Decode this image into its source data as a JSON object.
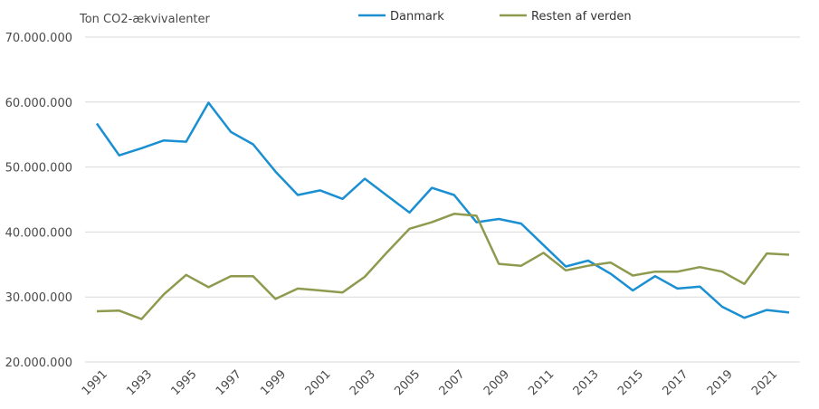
{
  "chart_data": {
    "type": "line",
    "ylabel": "Ton CO2-ækvivalenter",
    "x": [
      1991,
      1992,
      1993,
      1994,
      1995,
      1996,
      1997,
      1998,
      1999,
      2000,
      2001,
      2002,
      2003,
      2004,
      2005,
      2006,
      2007,
      2008,
      2009,
      2010,
      2011,
      2012,
      2013,
      2014,
      2015,
      2016,
      2017,
      2018,
      2019,
      2020,
      2021,
      2022
    ],
    "xtick_labels": [
      "1991",
      "1993",
      "1995",
      "1997",
      "1999",
      "2001",
      "2003",
      "2005",
      "2007",
      "2009",
      "2011",
      "2013",
      "2015",
      "2017",
      "2019",
      "2021"
    ],
    "ylim": [
      20000000,
      70000000
    ],
    "ytick_values": [
      20000000,
      30000000,
      40000000,
      50000000,
      60000000,
      70000000
    ],
    "ytick_labels": [
      "20.000.000",
      "30.000.000",
      "40.000.000",
      "50.000.000",
      "60.000.000",
      "70.000.000"
    ],
    "grid": true,
    "legend_position": "top-center",
    "series": [
      {
        "name": "Danmark",
        "color": "#1a8fd1",
        "values": [
          56700000,
          51800000,
          52900000,
          54100000,
          53900000,
          59900000,
          55400000,
          53500000,
          49300000,
          45700000,
          46400000,
          45100000,
          48200000,
          45600000,
          43000000,
          46800000,
          45700000,
          41500000,
          42000000,
          41300000,
          38000000,
          34700000,
          35600000,
          33600000,
          31000000,
          33200000,
          31300000,
          31600000,
          28500000,
          26800000,
          28000000,
          27600000
        ]
      },
      {
        "name": "Resten af verden",
        "color": "#8f9a4e",
        "values": [
          27800000,
          27900000,
          26600000,
          30400000,
          33400000,
          31500000,
          33200000,
          33200000,
          29700000,
          31300000,
          31000000,
          30700000,
          33100000,
          36900000,
          40500000,
          41500000,
          42800000,
          42500000,
          35100000,
          34800000,
          36800000,
          34100000,
          34800000,
          35300000,
          33300000,
          33900000,
          33900000,
          34600000,
          33900000,
          32000000,
          36700000,
          36500000
        ]
      }
    ]
  }
}
